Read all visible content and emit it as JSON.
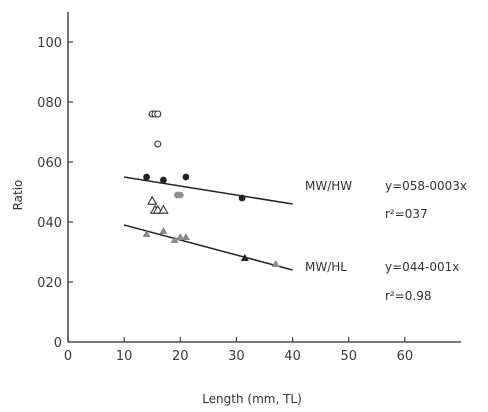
{
  "chart_data": {
    "type": "scatter",
    "xlabel": "Length (mm, TL)",
    "ylabel": "Ratio",
    "xlim": [
      0,
      70
    ],
    "ylim": [
      0,
      1.1
    ],
    "x_ticks": [
      "0",
      "10",
      "20",
      "30",
      "40",
      "50",
      "60"
    ],
    "y_ticks": [
      "0",
      "020",
      "040",
      "060",
      "080",
      "100"
    ],
    "grid": false,
    "series": [
      {
        "marker": "filled-circle",
        "values": [
          [
            14,
            0.55
          ],
          [
            17,
            0.54
          ],
          [
            21,
            0.55
          ],
          [
            31,
            0.48
          ]
        ]
      },
      {
        "marker": "gray-circle",
        "values": [
          [
            19.5,
            0.49
          ],
          [
            20,
            0.49
          ]
        ]
      },
      {
        "marker": "open-circle",
        "values": [
          [
            15,
            0.76
          ],
          [
            15.5,
            0.76
          ],
          [
            16,
            0.76
          ],
          [
            16,
            0.66
          ]
        ]
      },
      {
        "marker": "open-triangle",
        "values": [
          [
            15,
            0.47
          ],
          [
            15.5,
            0.44
          ],
          [
            16,
            0.44
          ],
          [
            17,
            0.44
          ]
        ]
      },
      {
        "marker": "filled-triangle",
        "values": [
          [
            14,
            0.36
          ],
          [
            17,
            0.37
          ],
          [
            19,
            0.34
          ],
          [
            20,
            0.35
          ],
          [
            21,
            0.35
          ],
          [
            31.5,
            0.28
          ],
          [
            37,
            0.26
          ]
        ]
      }
    ],
    "fits": [
      {
        "label": "MW/HW",
        "equation": "y=058-0003x",
        "r2": "r²=037",
        "x_range": [
          10,
          40
        ],
        "y_range": [
          0.55,
          0.46
        ]
      },
      {
        "label": "MW/HL",
        "equation": "y=044-001x",
        "r2": "r²=0.98",
        "x_range": [
          10,
          40
        ],
        "y_range": [
          0.39,
          0.24
        ]
      }
    ]
  }
}
